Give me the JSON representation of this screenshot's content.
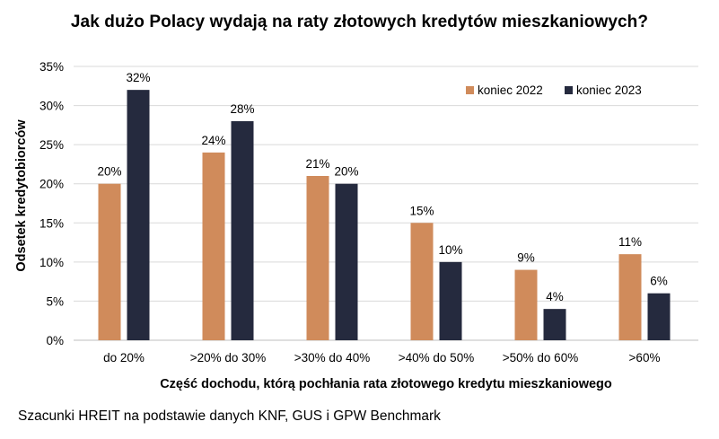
{
  "title": "Jak dużo Polacy wydają na raty złotowych kredytów mieszkaniowych?",
  "source": "Szacunki HREIT na podstawie danych KNF, GUS i GPW Benchmark",
  "chart_data": {
    "type": "bar",
    "title": "Jak dużo Polacy wydają na raty złotowych kredytów mieszkaniowych?",
    "xlabel": "Część dochodu, którą pochłania rata złotowego kredytu mieszkaniowego",
    "ylabel": "Odsetek kredytobiorców",
    "categories": [
      "do 20%",
      ">20% do 30%",
      ">30% do 40%",
      ">40% do 50%",
      ">50% do 60%",
      ">60%"
    ],
    "series": [
      {
        "name": "koniec 2022",
        "color": "#d08b5b",
        "values": [
          20,
          24,
          21,
          15,
          9,
          11
        ],
        "labels": [
          "20%",
          "24%",
          "21%",
          "15%",
          "9%",
          "11%"
        ]
      },
      {
        "name": "koniec 2023",
        "color": "#252a3e",
        "values": [
          32,
          28,
          20,
          10,
          4,
          6
        ],
        "labels": [
          "32%",
          "28%",
          "20%",
          "10%",
          "4%",
          "6%"
        ]
      }
    ],
    "ylim": [
      0,
      35
    ],
    "yticks": [
      0,
      5,
      10,
      15,
      20,
      25,
      30,
      35
    ],
    "ytick_labels": [
      "0%",
      "5%",
      "10%",
      "15%",
      "20%",
      "25%",
      "30%",
      "35%"
    ],
    "grid": true,
    "legend_position": "top-right"
  }
}
